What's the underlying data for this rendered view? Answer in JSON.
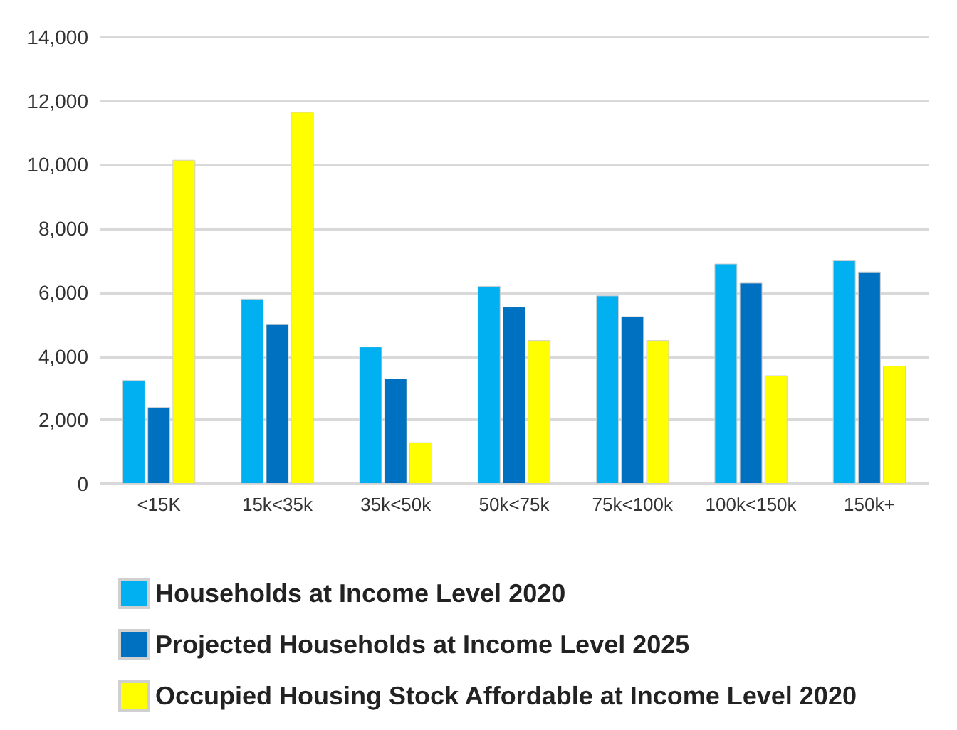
{
  "chart_data": {
    "type": "bar",
    "categories": [
      "<15K",
      "15k<35k",
      "35k<50k",
      "50k<75k",
      "75k<100k",
      "100k<150k",
      "150k+"
    ],
    "series": [
      {
        "name": "Households at Income Level 2020",
        "color": "#00b0f0",
        "values": [
          3250,
          5800,
          4300,
          6200,
          5900,
          6900,
          7000
        ]
      },
      {
        "name": "Projected Households at Income Level 2025",
        "color": "#0070c0",
        "values": [
          2400,
          5000,
          3300,
          5550,
          5250,
          6300,
          6650
        ]
      },
      {
        "name": "Occupied Housing Stock Affordable at Income Level 2020",
        "color": "#ffff00",
        "values": [
          10150,
          11650,
          1300,
          4500,
          4500,
          3400,
          3700
        ]
      }
    ],
    "ylim": [
      0,
      14000
    ],
    "yticks": [
      0,
      {
        "value": 2000,
        "label": "2,000"
      },
      {
        "value": 4000,
        "label": "4,000"
      },
      {
        "value": 6000,
        "label": "6,000"
      },
      {
        "value": 8000,
        "label": "8,000"
      },
      {
        "value": 10000,
        "label": "10,000"
      },
      {
        "value": 12000,
        "label": "12,000"
      },
      {
        "value": 14000,
        "label": "14,000"
      }
    ],
    "grid": "y",
    "legend": "bottom"
  }
}
